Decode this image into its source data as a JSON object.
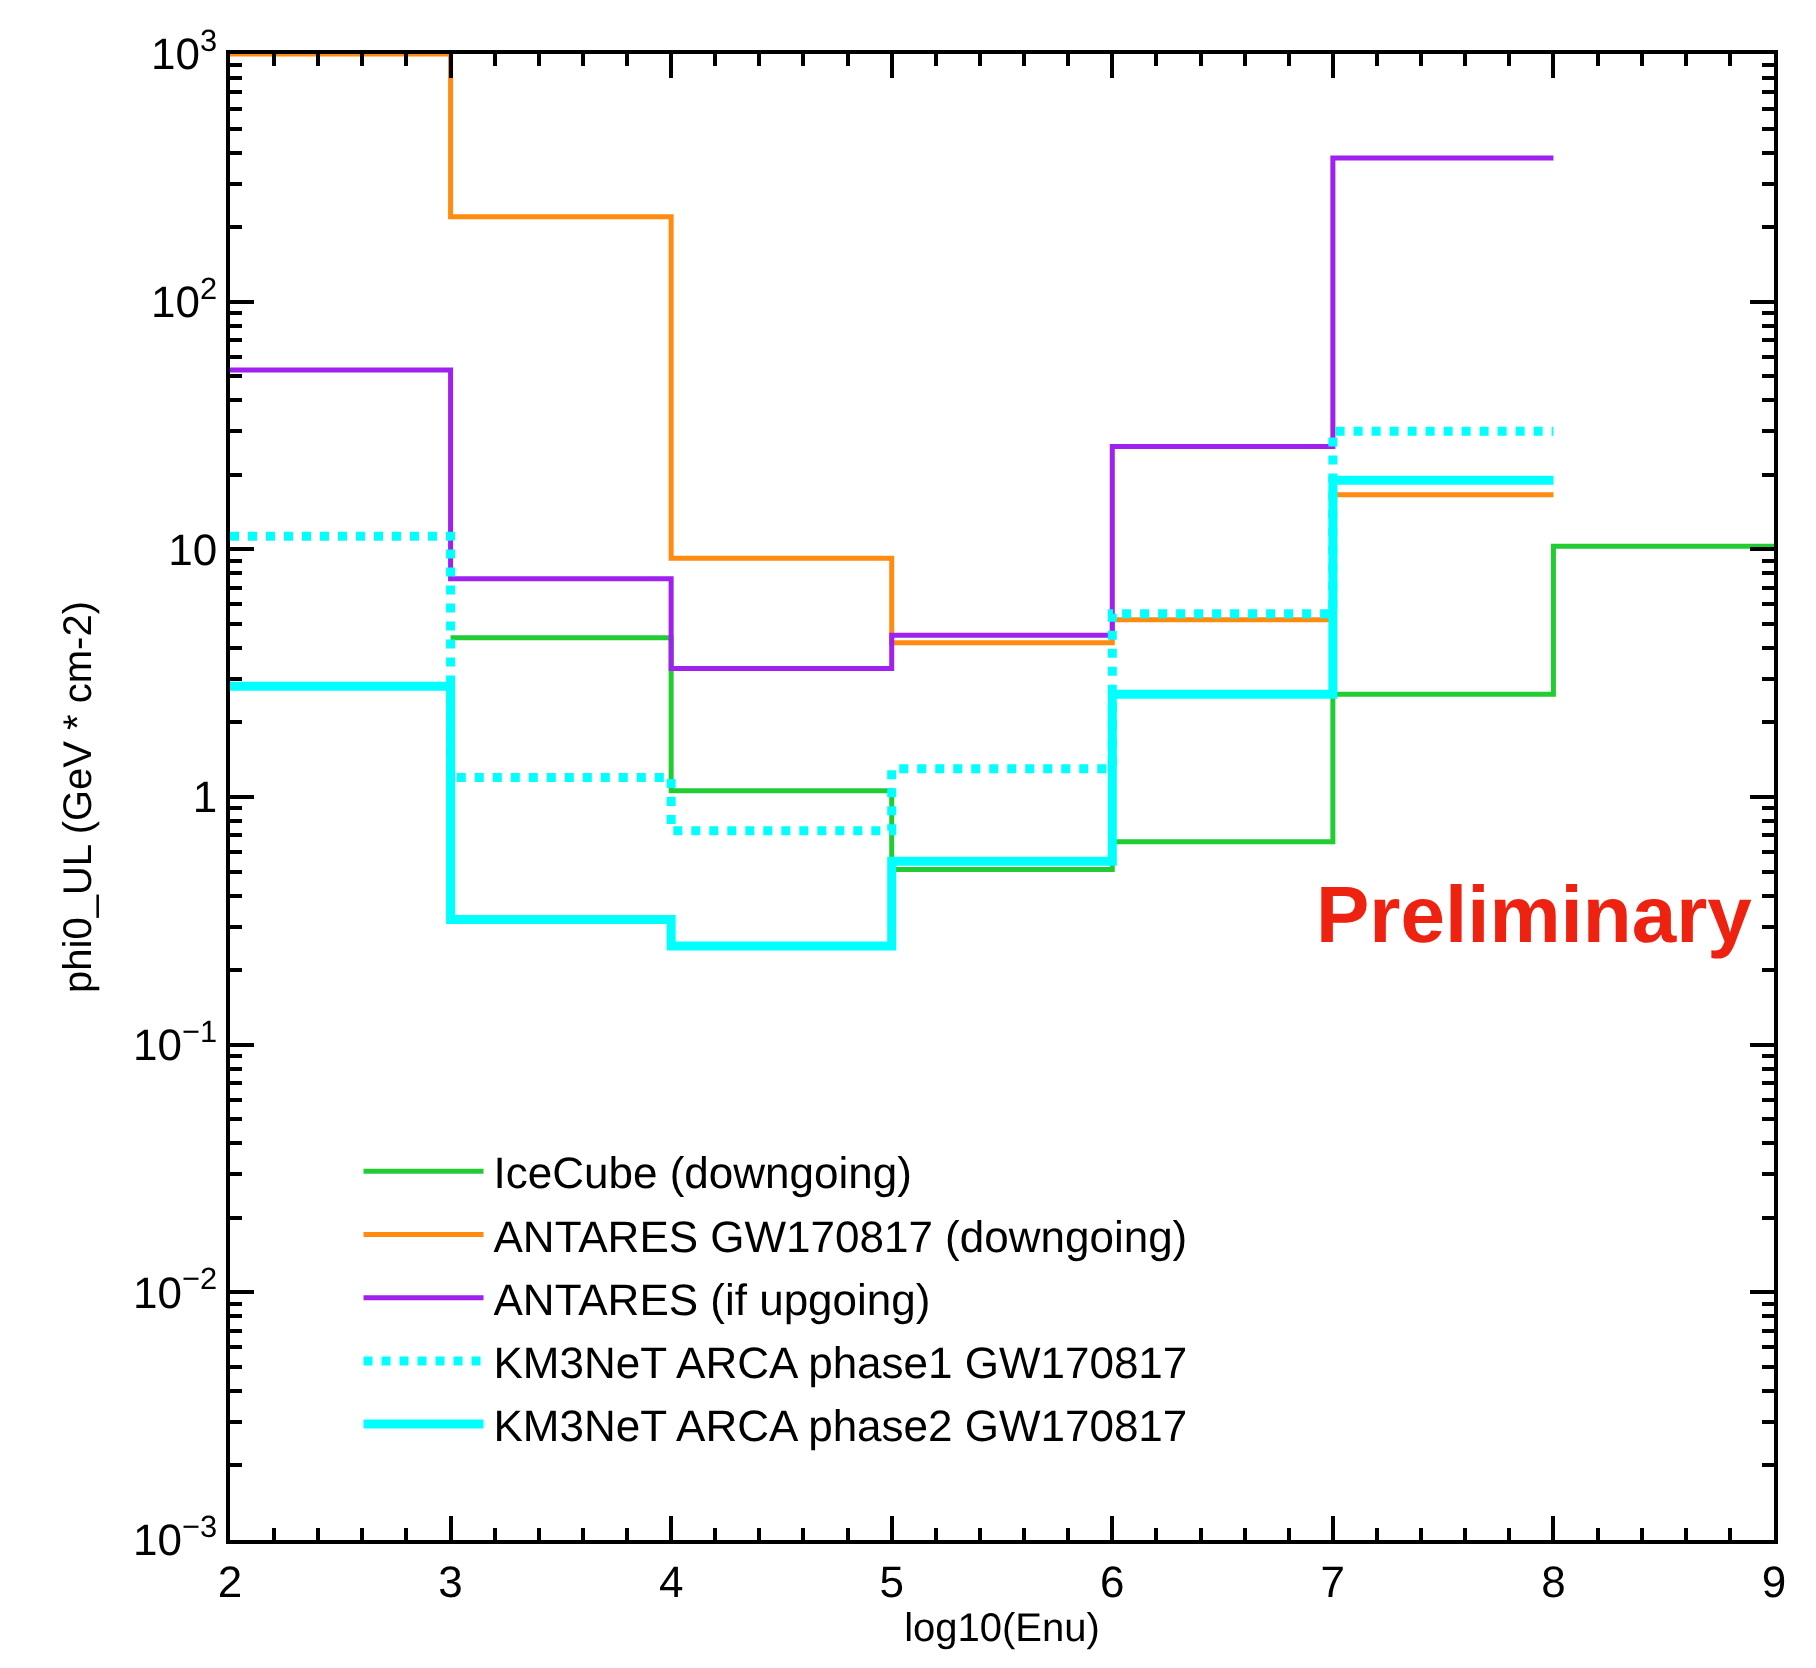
{
  "chart_data": {
    "type": "step",
    "xlabel": "log10(Enu)",
    "ylabel": "phi0_UL (GeV * cm-2)",
    "series": [
      {
        "name": "IceCube (downgoing)",
        "color": "#22cc33",
        "x": [
          3,
          4,
          5,
          6,
          7,
          8,
          9
        ],
        "values": [
          4.4,
          1.06,
          0.51,
          0.66,
          2.6,
          10.3,
          10.3
        ]
      },
      {
        "name": "ANTARES GW170817 (downgoing)",
        "color": "#ff8c10",
        "x": [
          2,
          3,
          4,
          5,
          6,
          7,
          8
        ],
        "values": [
          1000,
          220,
          9.2,
          4.2,
          5.2,
          16.6,
          16.6
        ]
      },
      {
        "name": "ANTARES (if upgoing)",
        "color": "#a020f0",
        "x": [
          2,
          3,
          4,
          5,
          6,
          7,
          8
        ],
        "values": [
          53,
          7.6,
          3.3,
          4.5,
          26,
          380,
          380
        ]
      },
      {
        "name": "KM3NeT ARCA phase1 GW170817",
        "color": "#00ffff",
        "line_style": "dotted",
        "x": [
          2,
          3,
          4,
          5,
          6,
          7,
          8
        ],
        "values": [
          11.3,
          1.2,
          0.73,
          1.3,
          5.5,
          30,
          30
        ]
      },
      {
        "name": "KM3NeT ARCA phase2 GW170817",
        "color": "#00ffff",
        "line_style": "solid",
        "x": [
          2,
          3,
          4,
          5,
          6,
          7,
          8
        ],
        "values": [
          2.8,
          0.32,
          0.25,
          0.55,
          2.6,
          19,
          19
        ]
      }
    ],
    "log": "y",
    "xlim": [
      2,
      9
    ],
    "ylim": [
      0.001,
      1000
    ],
    "xticks": [
      2,
      3,
      4,
      5,
      6,
      7,
      8,
      9
    ],
    "yticks": [
      {
        "value": 0.001,
        "label": "10$^{−3}$"
      },
      {
        "value": 0.01,
        "label": "10$^{−2}$"
      },
      {
        "value": 0.1,
        "label": "10$^{−1}$"
      },
      1,
      10,
      {
        "value": 100,
        "label": "10$^{2}$"
      },
      {
        "value": 1000,
        "label": "10$^{3}$"
      }
    ],
    "legend": "bottom left",
    "annotations": [
      "Preliminary"
    ]
  }
}
